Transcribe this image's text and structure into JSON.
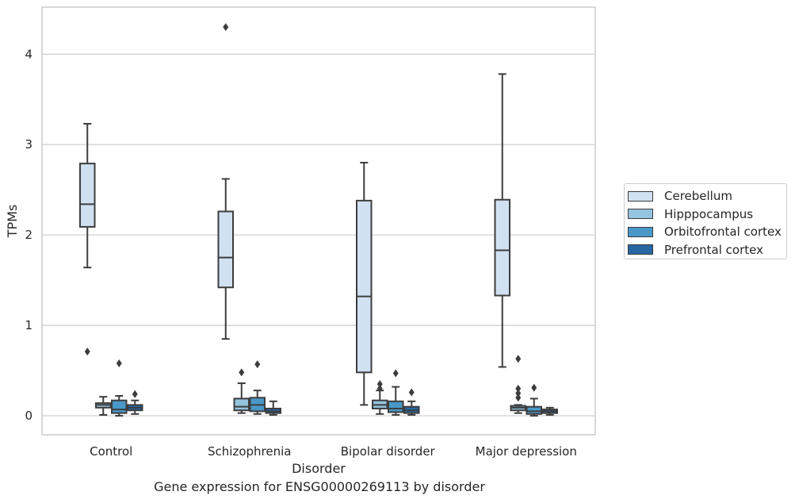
{
  "chart_data": {
    "type": "box",
    "title": "Gene expression for ENSG00000269113 by disorder",
    "xlabel": "Disorder",
    "ylabel": "TPMs",
    "ylim": [
      -0.21,
      4.52
    ],
    "yticks": [
      0,
      1,
      2,
      3,
      4
    ],
    "grid": "horizontal",
    "legend_position": "center-right",
    "categories": [
      "Control",
      "Schizophrenia",
      "Bipolar disorder",
      "Major depression"
    ],
    "series": [
      {
        "name": "Cerebellum",
        "color": "#d0e1f2",
        "boxes": [
          {
            "whisker_low": 1.64,
            "q1": 2.09,
            "median": 2.34,
            "q3": 2.79,
            "whisker_high": 3.23,
            "outliers": [
              0.71
            ]
          },
          {
            "whisker_low": 0.85,
            "q1": 1.42,
            "median": 1.75,
            "q3": 2.26,
            "whisker_high": 2.62,
            "outliers": [
              4.3
            ]
          },
          {
            "whisker_low": 0.12,
            "q1": 0.48,
            "median": 1.32,
            "q3": 2.38,
            "whisker_high": 2.8,
            "outliers": []
          },
          {
            "whisker_low": 0.54,
            "q1": 1.33,
            "median": 1.83,
            "q3": 2.39,
            "whisker_high": 3.78,
            "outliers": []
          }
        ]
      },
      {
        "name": "Hipppocampus",
        "color": "#94c4df",
        "boxes": [
          {
            "whisker_low": 0.01,
            "q1": 0.09,
            "median": 0.12,
            "q3": 0.14,
            "whisker_high": 0.21,
            "outliers": []
          },
          {
            "whisker_low": 0.03,
            "q1": 0.06,
            "median": 0.1,
            "q3": 0.19,
            "whisker_high": 0.36,
            "outliers": [
              0.48
            ]
          },
          {
            "whisker_low": 0.02,
            "q1": 0.08,
            "median": 0.12,
            "q3": 0.17,
            "whisker_high": 0.28,
            "outliers": [
              0.3,
              0.35
            ]
          },
          {
            "whisker_low": 0.03,
            "q1": 0.06,
            "median": 0.09,
            "q3": 0.11,
            "whisker_high": 0.12,
            "outliers": [
              0.2,
              0.25,
              0.3,
              0.63
            ]
          }
        ]
      },
      {
        "name": "Orbitofrontal cortex",
        "color": "#4a98c9",
        "boxes": [
          {
            "whisker_low": 0.0,
            "q1": 0.03,
            "median": 0.07,
            "q3": 0.17,
            "whisker_high": 0.22,
            "outliers": [
              0.58
            ]
          },
          {
            "whisker_low": 0.02,
            "q1": 0.05,
            "median": 0.12,
            "q3": 0.2,
            "whisker_high": 0.28,
            "outliers": [
              0.57
            ]
          },
          {
            "whisker_low": 0.01,
            "q1": 0.04,
            "median": 0.08,
            "q3": 0.16,
            "whisker_high": 0.32,
            "outliers": [
              0.47
            ]
          },
          {
            "whisker_low": 0.0,
            "q1": 0.02,
            "median": 0.05,
            "q3": 0.1,
            "whisker_high": 0.19,
            "outliers": [
              0.31
            ]
          }
        ]
      },
      {
        "name": "Prefrontal cortex",
        "color": "#2666a5",
        "boxes": [
          {
            "whisker_low": 0.02,
            "q1": 0.06,
            "median": 0.09,
            "q3": 0.12,
            "whisker_high": 0.17,
            "outliers": [
              0.24
            ]
          },
          {
            "whisker_low": 0.01,
            "q1": 0.03,
            "median": 0.05,
            "q3": 0.08,
            "whisker_high": 0.16,
            "outliers": []
          },
          {
            "whisker_low": 0.01,
            "q1": 0.03,
            "median": 0.06,
            "q3": 0.1,
            "whisker_high": 0.16,
            "outliers": [
              0.26
            ]
          },
          {
            "whisker_low": 0.01,
            "q1": 0.03,
            "median": 0.05,
            "q3": 0.07,
            "whisker_high": 0.09,
            "outliers": []
          }
        ]
      }
    ]
  }
}
